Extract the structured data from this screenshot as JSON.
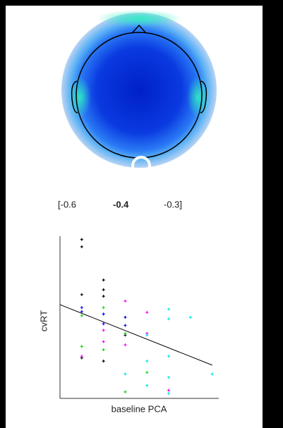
{
  "topomap": {
    "scale_labels": [
      "[-0.6",
      "-0.4",
      "-0.3]"
    ]
  },
  "chart_data": {
    "type": "scatter",
    "xlabel": "baseline PCA",
    "ylabel": "cvRT",
    "xlim": [
      0,
      7.3
    ],
    "ylim": [
      0,
      10
    ],
    "series": [
      {
        "color": "#000000",
        "x": [
          1,
          1,
          1,
          1,
          2,
          2,
          2,
          2,
          3
        ],
        "values": [
          9.8,
          9.35,
          6.4,
          2.5,
          7.3,
          6.7,
          6.3,
          2.3,
          3.9
        ]
      },
      {
        "color": "#00dd00",
        "x": [
          1,
          1,
          2,
          2,
          3,
          3,
          4
        ],
        "values": [
          5.1,
          3.2,
          5.6,
          3.0,
          4.0,
          0.4,
          1.6
        ]
      },
      {
        "color": "#0000ff",
        "x": [
          1,
          1,
          2,
          2,
          3,
          3
        ],
        "values": [
          5.6,
          5.35,
          5.2,
          4.6,
          5.0,
          4.5
        ]
      },
      {
        "color": "#ff00ff",
        "x": [
          1,
          2,
          2,
          3,
          3,
          4,
          4,
          5
        ],
        "values": [
          2.6,
          4.2,
          3.5,
          6.0,
          3.3,
          5.3,
          4.0,
          0.5
        ]
      },
      {
        "color": "#00e5ee",
        "x": [
          3,
          4,
          4,
          4,
          5,
          5,
          5,
          5,
          5,
          6,
          7
        ],
        "values": [
          1.5,
          3.9,
          2.3,
          0.8,
          5.5,
          4.9,
          2.6,
          1.3,
          0.3,
          5.0,
          1.5
        ]
      }
    ],
    "fit_line": {
      "x": [
        0,
        7
      ],
      "values": [
        5.78,
        2.05
      ]
    }
  }
}
